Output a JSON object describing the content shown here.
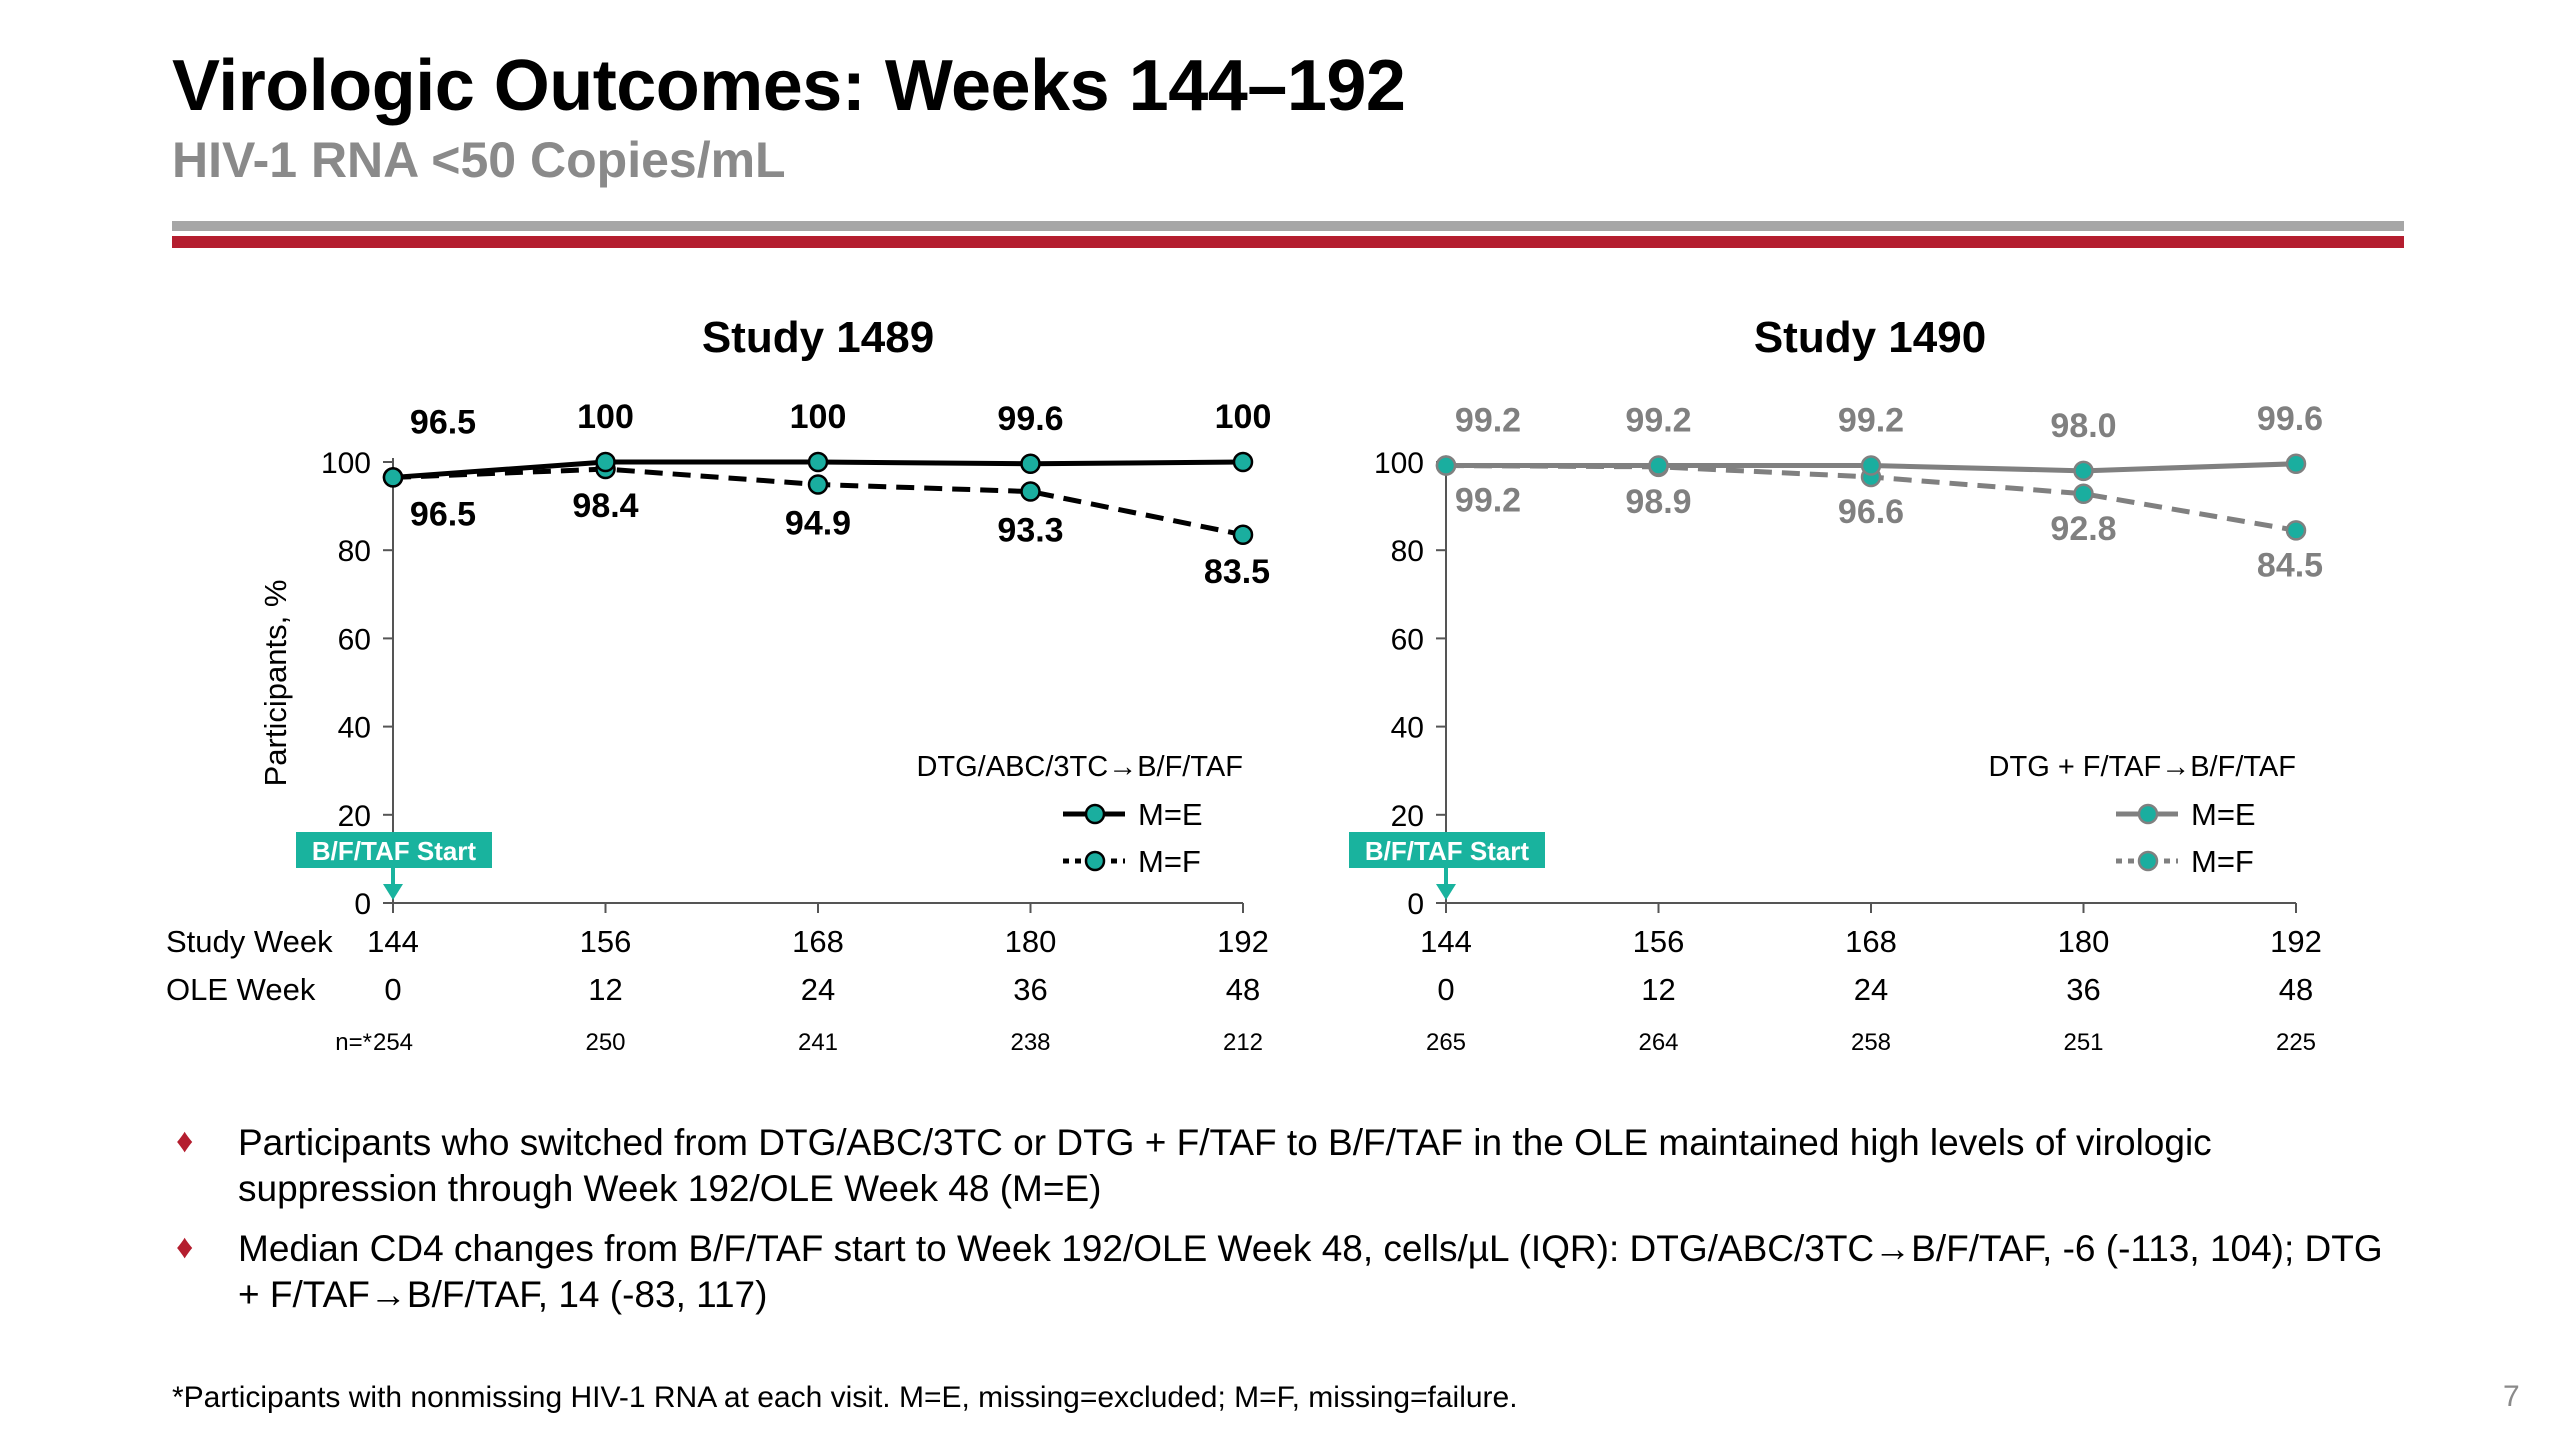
{
  "slide": {
    "title": "Virologic Outcomes: Weeks 144–192",
    "subtitle": "HIV-1 RNA <50 Copies/mL",
    "page_number": "7",
    "footnote": "*Participants with nonmissing HIV-1 RNA at each visit. M=E, missing=excluded; M=F, missing=failure.",
    "bullets": [
      "Participants who switched from DTG/ABC/3TC or DTG + F/TAF to B/F/TAF in the OLE maintained high levels of virologic suppression through Week 192/OLE Week 48 (M=E)",
      "Median CD4 changes from B/F/TAF start to Week 192/OLE Week 48, cells/µL (IQR): DTG/ABC/3TC→B/F/TAF, -6 (-113, 104); DTG + F/TAF→B/F/TAF, 14 (-83, 117)"
    ],
    "row_labels": {
      "study_week": "Study Week",
      "ole_week": "OLE Week",
      "n": "n=*"
    },
    "marker_label": "B/F/TAF Start",
    "colors": {
      "accent_red": "#b41e2f",
      "rule_gray": "#a6a6a6",
      "marker_teal": "#1aae9f",
      "badge_teal": "#19b39e",
      "series_black": "#000000",
      "series_gray": "#808080"
    }
  },
  "chart_data": [
    {
      "type": "line",
      "title": "Study 1489",
      "ylabel": "Participants, %",
      "ylim": [
        0,
        100
      ],
      "yticks": [
        0,
        20,
        40,
        60,
        80,
        100
      ],
      "x": [
        144,
        156,
        168,
        180,
        192
      ],
      "ole_weeks": [
        0,
        12,
        24,
        36,
        48
      ],
      "n": [
        254,
        250,
        241,
        238,
        212
      ],
      "legend_title": "DTG/ABC/3TC→B/F/TAF",
      "legend_position": "bottom-right",
      "series_color": "#000000",
      "series": [
        {
          "name": "M=E",
          "style": "solid",
          "values": [
            96.5,
            100,
            100,
            99.6,
            100
          ],
          "labels": [
            "96.5",
            "100",
            "100",
            "99.6",
            "100"
          ]
        },
        {
          "name": "M=F",
          "style": "dashed",
          "values": [
            96.5,
            98.4,
            94.9,
            93.3,
            83.5
          ],
          "labels": [
            "96.5",
            "98.4",
            "94.9",
            "93.3",
            "83.5"
          ]
        }
      ]
    },
    {
      "type": "line",
      "title": "Study 1490",
      "ylabel": "",
      "ylim": [
        0,
        100
      ],
      "yticks": [
        0,
        20,
        40,
        60,
        80,
        100
      ],
      "x": [
        144,
        156,
        168,
        180,
        192
      ],
      "ole_weeks": [
        0,
        12,
        24,
        36,
        48
      ],
      "n": [
        265,
        264,
        258,
        251,
        225
      ],
      "legend_title": "DTG + F/TAF→B/F/TAF",
      "legend_position": "bottom-right",
      "series_color": "#808080",
      "series": [
        {
          "name": "M=E",
          "style": "solid",
          "values": [
            99.2,
            99.2,
            99.2,
            98.0,
            99.6
          ],
          "labels": [
            "99.2",
            "99.2",
            "99.2",
            "98.0",
            "99.6"
          ]
        },
        {
          "name": "M=F",
          "style": "dashed",
          "values": [
            99.2,
            98.9,
            96.6,
            92.8,
            84.5
          ],
          "labels": [
            "99.2",
            "98.9",
            "96.6",
            "92.8",
            "84.5"
          ]
        }
      ]
    }
  ]
}
